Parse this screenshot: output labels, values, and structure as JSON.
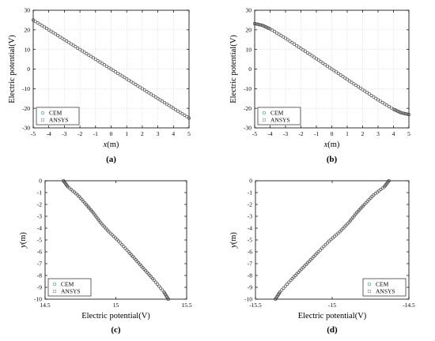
{
  "colors": {
    "cem": "#2e9e7f",
    "ansys": "#9a9a9a",
    "axis": "#000000",
    "grid": "#d0d0d0"
  },
  "chart_data": [
    {
      "type": "scatter",
      "panel_label": "(a)",
      "xlabel_var": "x",
      "xlabel_unit": "(m)",
      "ylabel": "Electric potential(V)",
      "xlim": [
        -5,
        5
      ],
      "ylim": [
        -30,
        30
      ],
      "xticks": [
        -5,
        -4,
        -3,
        -2,
        -1,
        0,
        1,
        2,
        3,
        4,
        5
      ],
      "xtick_labels": [
        "-5",
        "-4",
        "-3",
        "-2",
        "-1",
        "0",
        "1",
        "2",
        "3",
        "4",
        "5"
      ],
      "yticks": [
        30,
        20,
        10,
        0,
        -10,
        -20,
        -30
      ],
      "ytick_labels": [
        "30",
        "20",
        "10",
        "0",
        "-10",
        "-20",
        "-30"
      ],
      "grid": true,
      "legend_position": "bottom-left",
      "series": [
        {
          "name": "CEM",
          "x": [
            -5.0,
            -4.0,
            -3.0,
            -2.0,
            -1.0,
            0.0,
            1.0,
            2.0,
            3.0,
            4.0,
            5.0
          ],
          "y": [
            25.0,
            20.0,
            15.0,
            10.0,
            5.0,
            0.0,
            -5.0,
            -10.0,
            -15.0,
            -20.0,
            -25.0
          ]
        },
        {
          "name": "ANSYS",
          "x": [
            -5.0,
            -4.0,
            -3.0,
            -2.0,
            -1.0,
            0.0,
            1.0,
            2.0,
            3.0,
            4.0,
            5.0
          ],
          "y": [
            25.0,
            20.0,
            15.0,
            10.0,
            5.0,
            0.0,
            -5.0,
            -10.0,
            -15.0,
            -20.0,
            -25.0
          ]
        }
      ]
    },
    {
      "type": "scatter",
      "panel_label": "(b)",
      "xlabel_var": "x",
      "xlabel_unit": "(m)",
      "ylabel": "Electric potential(V)",
      "xlim": [
        -5,
        5
      ],
      "ylim": [
        -30,
        30
      ],
      "xticks": [
        -5,
        -4,
        -3,
        -2,
        -1,
        0,
        1,
        2,
        3,
        4,
        5
      ],
      "xtick_labels": [
        "-5",
        "-4",
        "-3",
        "-2",
        "-1",
        "0",
        "1",
        "2",
        "3",
        "4",
        "5"
      ],
      "yticks": [
        30,
        20,
        10,
        0,
        -10,
        -20,
        -30
      ],
      "ytick_labels": [
        "30",
        "20",
        "10",
        "0",
        "-10",
        "-20",
        "-30"
      ],
      "grid": true,
      "legend_position": "bottom-left",
      "series": [
        {
          "name": "CEM",
          "x": [
            -5.0,
            -4.5,
            -4.0,
            -3.0,
            -2.0,
            -1.0,
            0.0,
            1.0,
            2.0,
            3.0,
            4.0,
            4.5,
            5.0
          ],
          "y": [
            23.2,
            22.3,
            20.5,
            15.7,
            10.5,
            5.3,
            0.0,
            -5.3,
            -10.5,
            -15.7,
            -20.5,
            -22.3,
            -23.2
          ]
        },
        {
          "name": "ANSYS",
          "x": [
            -5.0,
            -4.5,
            -4.0,
            -3.0,
            -2.0,
            -1.0,
            0.0,
            1.0,
            2.0,
            3.0,
            4.0,
            4.5,
            5.0
          ],
          "y": [
            23.2,
            22.3,
            20.5,
            15.7,
            10.5,
            5.3,
            0.0,
            -5.3,
            -10.5,
            -15.7,
            -20.5,
            -22.3,
            -23.2
          ]
        }
      ]
    },
    {
      "type": "scatter",
      "panel_label": "(c)",
      "xlabel": "Electric potential(V)",
      "ylabel_var": "y",
      "ylabel_unit": "(m)",
      "xlim": [
        14.5,
        15.5
      ],
      "ylim": [
        -10,
        0
      ],
      "xticks": [
        14.5,
        15,
        15.5
      ],
      "xtick_labels": [
        "14.5",
        "15",
        "15.5"
      ],
      "yticks": [
        0,
        -1,
        -2,
        -3,
        -4,
        -5,
        -6,
        -7,
        -8,
        -9,
        -10
      ],
      "ytick_labels": [
        "0",
        "-1",
        "-2",
        "-3",
        "-4",
        "-5",
        "-6",
        "-7",
        "-8",
        "-9",
        "-10"
      ],
      "grid": false,
      "legend_position": "bottom-left",
      "series": [
        {
          "name": "CEM",
          "x": [
            14.63,
            14.66,
            14.73,
            14.79,
            14.84,
            14.89,
            14.95,
            15.02,
            15.09,
            15.15,
            15.21,
            15.27,
            15.34,
            15.37
          ],
          "y": [
            0.0,
            -0.5,
            -1.2,
            -2.0,
            -2.7,
            -3.5,
            -4.3,
            -5.1,
            -6.0,
            -6.8,
            -7.6,
            -8.4,
            -9.4,
            -10.0
          ]
        },
        {
          "name": "ANSYS",
          "x": [
            14.63,
            14.66,
            14.73,
            14.79,
            14.84,
            14.89,
            14.95,
            15.02,
            15.09,
            15.15,
            15.21,
            15.27,
            15.34,
            15.37
          ],
          "y": [
            0.0,
            -0.5,
            -1.2,
            -2.0,
            -2.7,
            -3.5,
            -4.3,
            -5.1,
            -6.0,
            -6.8,
            -7.6,
            -8.4,
            -9.4,
            -10.0
          ]
        }
      ]
    },
    {
      "type": "scatter",
      "panel_label": "(d)",
      "xlabel": "Electric potential(V)",
      "ylabel_var": "y",
      "ylabel_unit": "(m)",
      "xlim": [
        -15.5,
        -14.5
      ],
      "ylim": [
        -10,
        0
      ],
      "xticks": [
        -15.5,
        -15,
        -14.5
      ],
      "xtick_labels": [
        "-15.5",
        "-15",
        "-14.5"
      ],
      "yticks": [
        0,
        -1,
        -2,
        -3,
        -4,
        -5,
        -6,
        -7,
        -8,
        -9,
        -10
      ],
      "ytick_labels": [
        "0",
        "-1",
        "-2",
        "-3",
        "-4",
        "-5",
        "-6",
        "-7",
        "-8",
        "-9",
        "-10"
      ],
      "grid": false,
      "legend_position": "bottom-right",
      "series": [
        {
          "name": "CEM",
          "x": [
            -14.63,
            -14.66,
            -14.73,
            -14.79,
            -14.84,
            -14.89,
            -14.95,
            -15.02,
            -15.09,
            -15.15,
            -15.21,
            -15.27,
            -15.34,
            -15.37
          ],
          "y": [
            0.0,
            -0.5,
            -1.2,
            -2.0,
            -2.7,
            -3.5,
            -4.3,
            -5.1,
            -6.0,
            -6.8,
            -7.6,
            -8.4,
            -9.4,
            -10.0
          ]
        },
        {
          "name": "ANSYS",
          "x": [
            -14.63,
            -14.66,
            -14.73,
            -14.79,
            -14.84,
            -14.89,
            -14.95,
            -15.02,
            -15.09,
            -15.15,
            -15.21,
            -15.27,
            -15.34,
            -15.37
          ],
          "y": [
            0.0,
            -0.5,
            -1.2,
            -2.0,
            -2.7,
            -3.5,
            -4.3,
            -5.1,
            -6.0,
            -6.8,
            -7.6,
            -8.4,
            -9.4,
            -10.0
          ]
        }
      ]
    }
  ]
}
